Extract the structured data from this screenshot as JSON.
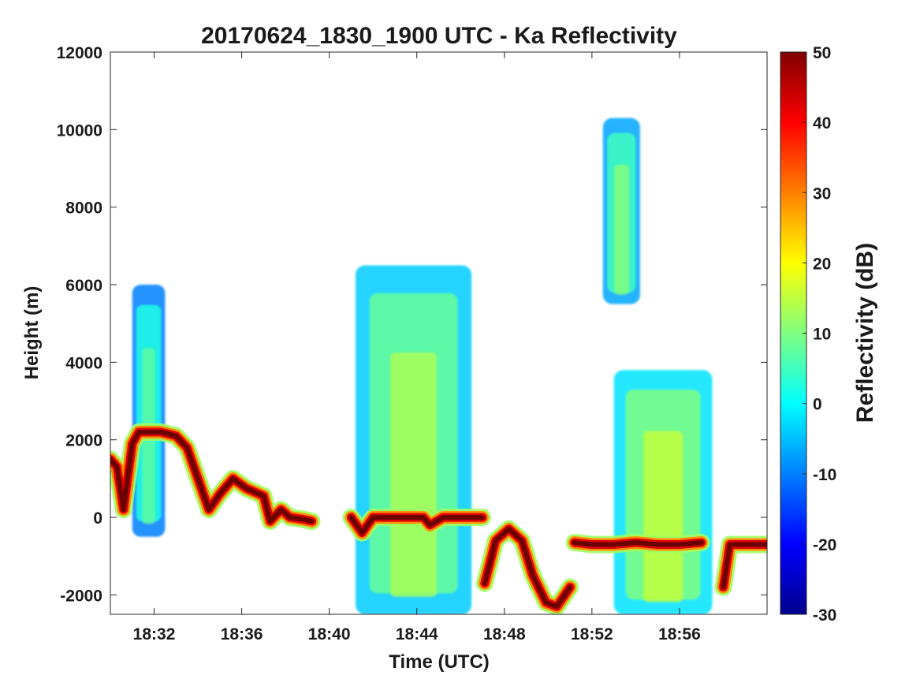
{
  "chart_data": {
    "type": "heatmap",
    "title": "20170624_1830_1900 UTC - Ka Reflectivity",
    "xlabel": "Time (UTC)",
    "ylabel": "Height (m)",
    "x_ticks": [
      "18:32",
      "18:36",
      "18:40",
      "18:44",
      "18:48",
      "18:52",
      "18:56"
    ],
    "y_ticks": [
      "12000",
      "10000",
      "8000",
      "6000",
      "4000",
      "2000",
      "0",
      "-2000"
    ],
    "ylim": [
      -2500,
      12000
    ],
    "xlim_minutes": [
      30,
      60
    ],
    "colorbar": {
      "label": "Reflectivity (dB)",
      "range": [
        -30,
        50
      ],
      "ticks": [
        "50",
        "40",
        "30",
        "20",
        "10",
        "0",
        "-10",
        "-20",
        "-30"
      ],
      "colormap": "jet"
    },
    "features": [
      {
        "name": "surface return",
        "t": [
          30.0,
          30.3,
          30.6,
          31.0,
          31.3,
          31.8,
          32.3,
          33.0,
          33.5,
          34.0,
          34.5,
          35.0,
          35.6,
          36.2,
          37.0,
          37.3,
          37.8,
          38.2,
          38.8,
          39.2
        ],
        "z": [
          1500,
          1300,
          200,
          1900,
          2200,
          2200,
          2200,
          2100,
          1800,
          1000,
          200,
          600,
          1000,
          750,
          550,
          -100,
          200,
          0,
          -50,
          -100
        ]
      },
      {
        "name": "surface return",
        "t": [
          41.0,
          41.5,
          42.0,
          42.5,
          43.5,
          44.3,
          44.6,
          45.2,
          46.0,
          47.0
        ],
        "z": [
          0,
          -400,
          0,
          0,
          0,
          0,
          -200,
          0,
          0,
          0
        ]
      },
      {
        "name": "surface return",
        "t": [
          47.1,
          47.6,
          48.2,
          48.8,
          49.3,
          49.9,
          50.4,
          51.0
        ],
        "z": [
          -1700,
          -600,
          -300,
          -600,
          -1500,
          -2200,
          -2300,
          -1800
        ]
      },
      {
        "name": "surface return",
        "t": [
          51.2,
          52.0,
          53.0,
          54.0,
          55.0,
          56.0,
          57.0
        ],
        "z": [
          -650,
          -700,
          -700,
          -650,
          -700,
          -700,
          -650
        ]
      },
      {
        "name": "surface return",
        "t": [
          58.0,
          58.3,
          58.8,
          59.4,
          60.0
        ],
        "z": [
          -1800,
          -700,
          -700,
          -700,
          -700
        ]
      },
      {
        "name": "cloud",
        "t": [
          31.0,
          32.5
        ],
        "z": [
          -500,
          6000
        ],
        "dbz": 2
      },
      {
        "name": "cloud",
        "t": [
          41.2,
          46.5
        ],
        "z": [
          -2500,
          6500
        ],
        "dbz": 8
      },
      {
        "name": "cloud",
        "t": [
          52.5,
          54.2
        ],
        "z": [
          5500,
          10300
        ],
        "dbz": 5
      },
      {
        "name": "cloud",
        "t": [
          53.0,
          57.5
        ],
        "z": [
          -2500,
          3800
        ],
        "dbz": 10
      }
    ]
  }
}
